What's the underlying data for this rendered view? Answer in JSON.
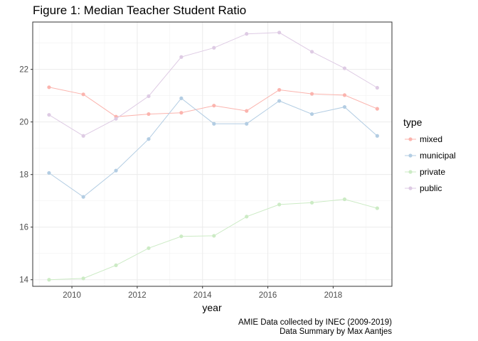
{
  "chart_data": {
    "type": "line",
    "title": "Figure 1: Median Teacher Student Ratio",
    "xlabel": "year",
    "ylabel": "",
    "xlim": [
      2008.8,
      2019.8
    ],
    "ylim": [
      13.75,
      23.8
    ],
    "x_ticks": [
      2010,
      2012,
      2014,
      2016,
      2018
    ],
    "y_ticks": [
      14,
      16,
      18,
      20,
      22
    ],
    "grid": true,
    "legend": {
      "title": "type",
      "position": "right"
    },
    "x": [
      2009.3,
      2010.35,
      2011.35,
      2012.35,
      2013.35,
      2014.35,
      2015.35,
      2016.35,
      2017.35,
      2018.35,
      2019.35
    ],
    "series": [
      {
        "name": "mixed",
        "color": "#fbb4ae",
        "values": [
          21.32,
          21.05,
          20.2,
          20.3,
          20.35,
          20.62,
          20.42,
          21.22,
          21.07,
          21.02,
          20.5
        ]
      },
      {
        "name": "municipal",
        "color": "#b3cde3",
        "values": [
          18.06,
          17.15,
          18.15,
          19.35,
          20.9,
          19.93,
          19.93,
          20.8,
          20.3,
          20.57,
          19.47
        ]
      },
      {
        "name": "private",
        "color": "#ccebc5",
        "values": [
          14.0,
          14.05,
          14.55,
          15.2,
          15.65,
          15.67,
          16.4,
          16.86,
          16.93,
          17.06,
          16.72
        ]
      },
      {
        "name": "public",
        "color": "#decbe4",
        "values": [
          20.27,
          19.47,
          20.12,
          20.98,
          22.47,
          22.82,
          23.35,
          23.4,
          22.67,
          22.04,
          21.3
        ]
      }
    ]
  },
  "caption": {
    "line1": "AMIE Data collected by INEC (2009-2019)",
    "line2": "Data Summary by Max Aantjes"
  }
}
